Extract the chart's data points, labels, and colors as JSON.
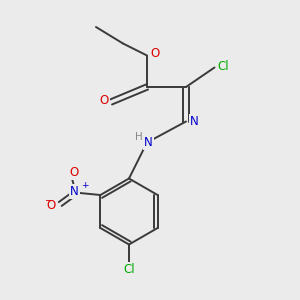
{
  "background_color": "#ebebeb",
  "bond_color": "#3a3a3a",
  "atom_colors": {
    "Cl": "#00aa00",
    "O": "#dd0000",
    "N": "#0000cc",
    "H": "#888888",
    "C": "#3a3a3a"
  },
  "lw": 1.4
}
